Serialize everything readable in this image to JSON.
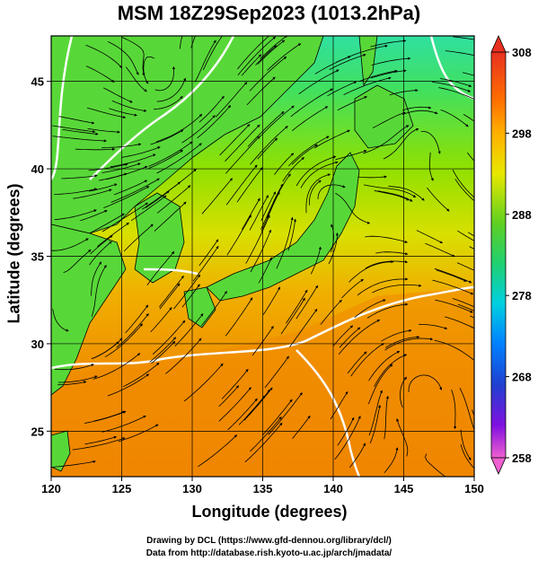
{
  "title": "MSM 18Z29Sep2023 (1013.2hPa)",
  "xlabel": "Longitude (degrees)",
  "ylabel": "Latitude  (degrees)",
  "credits": [
    "Drawing by DCL (https://www.gfd-dennou.org/library/dcl/)",
    "Data from http://database.rish.kyoto-u.ac.jp/arch/jmadata/"
  ],
  "x_ticks": [
    "120",
    "125",
    "130",
    "135",
    "140",
    "145",
    "150"
  ],
  "y_ticks": [
    "25",
    "30",
    "35",
    "40",
    "45"
  ],
  "colorbar": {
    "ticks": [
      "308",
      "298",
      "288",
      "278",
      "268",
      "258"
    ],
    "range": [
      258,
      308
    ],
    "colors": [
      "#e060d0",
      "#b000e0",
      "#4040e0",
      "#0080ff",
      "#00d0e0",
      "#00e080",
      "#20d020",
      "#a0e000",
      "#f0e000",
      "#ff9000",
      "#ff4000",
      "#e02020"
    ]
  },
  "map": {
    "lon_range": [
      120,
      150
    ],
    "lat_range": [
      22.4,
      47.6
    ],
    "grid_lon_step": 5,
    "grid_lat_step": 5,
    "field_colors": {
      "cold": "#40e880",
      "cool": "#60e040",
      "mild": "#a8e000",
      "warm": "#f0c000",
      "hot": "#f09000",
      "hottest": "#f07800"
    }
  }
}
